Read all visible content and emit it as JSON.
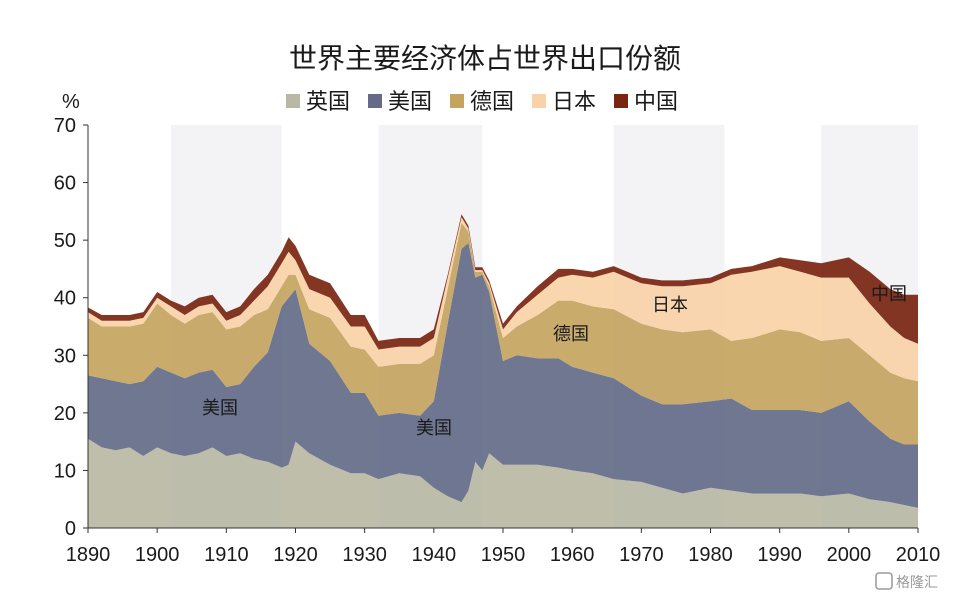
{
  "chart_data": {
    "type": "area",
    "stacked": true,
    "title": "世界主要经济体占世界出口份额",
    "ylabel": "%",
    "ylim": [
      0,
      70
    ],
    "yticks": [
      0,
      10,
      20,
      30,
      40,
      50,
      60,
      70
    ],
    "xlim": [
      1890,
      2010
    ],
    "xticks": [
      1890,
      1900,
      1910,
      1920,
      1930,
      1940,
      1950,
      1960,
      1970,
      1980,
      1990,
      2000,
      2010
    ],
    "grid": false,
    "legend_position": "top",
    "x": [
      1890,
      1892,
      1894,
      1896,
      1898,
      1900,
      1902,
      1904,
      1906,
      1908,
      1910,
      1912,
      1914,
      1916,
      1918,
      1919,
      1920,
      1922,
      1925,
      1928,
      1930,
      1932,
      1935,
      1938,
      1940,
      1942,
      1944,
      1945,
      1946,
      1947,
      1948,
      1950,
      1952,
      1955,
      1958,
      1960,
      1963,
      1966,
      1970,
      1973,
      1976,
      1980,
      1983,
      1986,
      1990,
      1993,
      1996,
      2000,
      2003,
      2006,
      2008,
      2010
    ],
    "series": [
      {
        "name": "英国",
        "color": "#b8b8a4",
        "values": [
          15.5,
          14.0,
          13.5,
          14.0,
          12.5,
          14.0,
          13.0,
          12.5,
          13.0,
          14.0,
          12.5,
          13.0,
          12.0,
          11.5,
          10.5,
          11.0,
          15.0,
          13.0,
          11.0,
          9.5,
          9.5,
          8.5,
          9.5,
          9.0,
          7.0,
          5.5,
          4.5,
          6.5,
          11.5,
          10.0,
          13.0,
          11.0,
          11.0,
          11.0,
          10.5,
          10.0,
          9.5,
          8.5,
          8.0,
          7.0,
          6.0,
          7.0,
          6.5,
          6.0,
          6.0,
          6.0,
          5.5,
          6.0,
          5.0,
          4.5,
          4.0,
          3.5
        ]
      },
      {
        "name": "美国",
        "color": "#636b88",
        "values": [
          11.0,
          12.0,
          12.0,
          11.0,
          13.0,
          14.0,
          14.0,
          13.5,
          14.0,
          13.5,
          12.0,
          12.0,
          16.0,
          19.0,
          28.0,
          29.0,
          26.5,
          19.0,
          18.0,
          14.0,
          14.0,
          11.0,
          10.5,
          10.5,
          15.0,
          30.0,
          44.0,
          43.0,
          32.0,
          34.0,
          28.0,
          18.0,
          19.0,
          18.5,
          19.0,
          18.0,
          17.5,
          17.5,
          15.0,
          14.5,
          15.5,
          15.0,
          16.0,
          14.5,
          14.5,
          14.5,
          14.5,
          16.0,
          13.5,
          11.0,
          10.5,
          11.0
        ]
      },
      {
        "name": "德国",
        "color": "#c4a45f",
        "values": [
          10.0,
          9.0,
          9.5,
          10.0,
          10.0,
          11.0,
          10.0,
          9.5,
          10.0,
          10.0,
          10.0,
          10.0,
          9.0,
          7.5,
          3.5,
          4.0,
          2.5,
          6.0,
          7.5,
          8.0,
          7.5,
          8.5,
          8.5,
          9.0,
          8.0,
          6.0,
          4.5,
          2.0,
          1.0,
          0.5,
          1.0,
          4.0,
          5.0,
          7.5,
          10.0,
          11.5,
          11.5,
          12.0,
          12.5,
          13.0,
          12.5,
          12.5,
          10.0,
          12.5,
          14.0,
          13.5,
          12.5,
          11.0,
          11.5,
          11.5,
          11.5,
          11.0
        ]
      },
      {
        "name": "日本",
        "color": "#fad2a8",
        "values": [
          1.0,
          1.0,
          1.0,
          1.0,
          1.0,
          1.0,
          1.5,
          1.5,
          1.5,
          1.5,
          1.5,
          2.0,
          2.5,
          4.0,
          4.0,
          4.0,
          2.5,
          3.5,
          3.5,
          3.5,
          4.0,
          3.0,
          3.0,
          3.0,
          3.0,
          2.0,
          1.0,
          0.5,
          0.3,
          0.3,
          0.5,
          1.5,
          2.5,
          3.5,
          4.0,
          4.5,
          5.0,
          6.5,
          7.0,
          7.5,
          8.0,
          8.0,
          11.5,
          11.5,
          11.0,
          10.5,
          11.0,
          10.5,
          9.0,
          8.0,
          7.0,
          6.5
        ]
      },
      {
        "name": "中国",
        "color": "#7a2510",
        "values": [
          0.8,
          1.0,
          1.0,
          1.0,
          1.0,
          1.0,
          1.0,
          1.5,
          1.5,
          1.5,
          1.5,
          1.5,
          2.0,
          2.0,
          2.0,
          2.5,
          2.5,
          2.5,
          2.5,
          2.0,
          2.0,
          1.5,
          1.5,
          1.5,
          1.5,
          0.5,
          0.5,
          0.5,
          0.5,
          0.5,
          0.5,
          1.0,
          1.0,
          1.5,
          1.5,
          1.0,
          1.0,
          1.0,
          1.0,
          1.0,
          1.0,
          1.0,
          1.0,
          1.0,
          1.5,
          2.0,
          2.5,
          3.5,
          5.5,
          6.5,
          7.5,
          8.5
        ]
      }
    ],
    "annotations": [
      "美国",
      "美国",
      "德国",
      "日本",
      "中国"
    ]
  },
  "watermark": "格隆汇"
}
